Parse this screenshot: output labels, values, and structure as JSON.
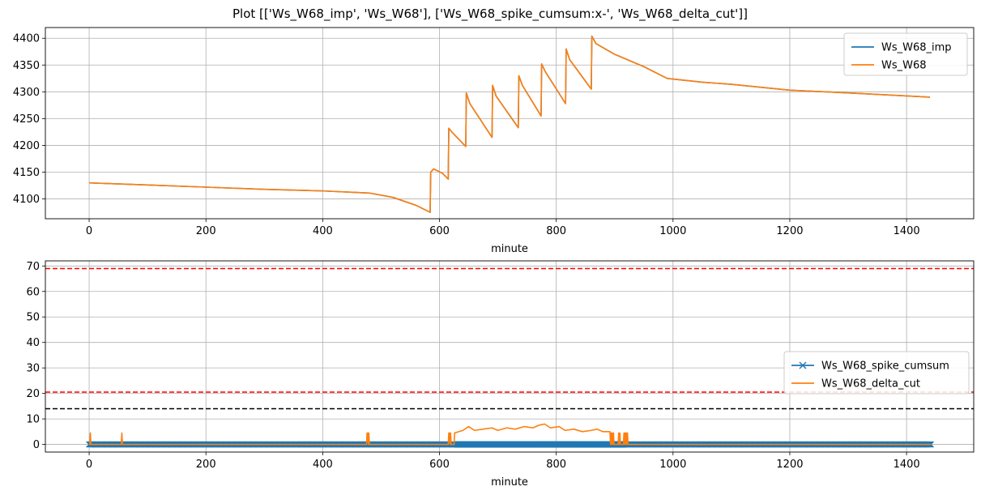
{
  "figure": {
    "title": "Plot [['Ws_W68_imp', 'Ws_W68'], ['Ws_W68_spike_cumsum:x-', 'Ws_W68_delta_cut']]"
  },
  "colors": {
    "blue": "#1f77b4",
    "orange": "#ff7f0e",
    "red_dashed": "#ff0000",
    "black_dashed": "#000000",
    "grid": "#b0b0b0"
  },
  "chart_data": [
    {
      "type": "line",
      "title": "",
      "xlabel": "minute",
      "ylabel": "",
      "xlim": [
        -75,
        1515
      ],
      "ylim": [
        4063,
        4420
      ],
      "xticks": [
        0,
        200,
        400,
        600,
        800,
        1000,
        1200,
        1400
      ],
      "yticks": [
        4100,
        4150,
        4200,
        4250,
        4300,
        4350,
        4400
      ],
      "grid": true,
      "legend": "top-right",
      "series": [
        {
          "name": "Ws_W68_imp",
          "color": "#1f77b4",
          "points": [
            [
              0,
              4130
            ],
            [
              100,
              4126
            ],
            [
              200,
              4122
            ],
            [
              300,
              4118
            ],
            [
              400,
              4115
            ],
            [
              480,
              4111
            ],
            [
              520,
              4103
            ],
            [
              560,
              4088
            ],
            [
              584,
              4075
            ],
            [
              585,
              4150
            ],
            [
              590,
              4156
            ],
            [
              605,
              4148
            ],
            [
              615,
              4137
            ],
            [
              616,
              4232
            ],
            [
              622,
              4224
            ],
            [
              645,
              4198
            ],
            [
              646,
              4298
            ],
            [
              652,
              4278
            ],
            [
              690,
              4215
            ],
            [
              691,
              4312
            ],
            [
              697,
              4292
            ],
            [
              735,
              4233
            ],
            [
              736,
              4330
            ],
            [
              742,
              4312
            ],
            [
              774,
              4255
            ],
            [
              775,
              4352
            ],
            [
              781,
              4338
            ],
            [
              816,
              4278
            ],
            [
              817,
              4380
            ],
            [
              823,
              4360
            ],
            [
              860,
              4305
            ],
            [
              861,
              4404
            ],
            [
              868,
              4390
            ],
            [
              900,
              4370
            ],
            [
              950,
              4347
            ],
            [
              990,
              4325
            ],
            [
              1050,
              4318
            ],
            [
              1100,
              4314
            ],
            [
              1200,
              4303
            ],
            [
              1300,
              4298
            ],
            [
              1440,
              4290
            ]
          ]
        },
        {
          "name": "Ws_W68",
          "color": "#ff7f0e",
          "points": [
            [
              0,
              4130
            ],
            [
              100,
              4126
            ],
            [
              200,
              4122
            ],
            [
              300,
              4118
            ],
            [
              400,
              4115
            ],
            [
              480,
              4111
            ],
            [
              520,
              4103
            ],
            [
              560,
              4088
            ],
            [
              584,
              4075
            ],
            [
              585,
              4150
            ],
            [
              590,
              4156
            ],
            [
              605,
              4148
            ],
            [
              615,
              4137
            ],
            [
              616,
              4232
            ],
            [
              622,
              4224
            ],
            [
              645,
              4198
            ],
            [
              646,
              4298
            ],
            [
              652,
              4278
            ],
            [
              690,
              4215
            ],
            [
              691,
              4312
            ],
            [
              697,
              4292
            ],
            [
              735,
              4233
            ],
            [
              736,
              4330
            ],
            [
              742,
              4312
            ],
            [
              774,
              4255
            ],
            [
              775,
              4352
            ],
            [
              781,
              4338
            ],
            [
              816,
              4278
            ],
            [
              817,
              4380
            ],
            [
              823,
              4360
            ],
            [
              860,
              4305
            ],
            [
              861,
              4404
            ],
            [
              868,
              4390
            ],
            [
              900,
              4370
            ],
            [
              950,
              4347
            ],
            [
              990,
              4325
            ],
            [
              1050,
              4318
            ],
            [
              1100,
              4314
            ],
            [
              1200,
              4303
            ],
            [
              1300,
              4298
            ],
            [
              1440,
              4290
            ]
          ]
        }
      ]
    },
    {
      "type": "line",
      "title": "",
      "xlabel": "minute",
      "ylabel": "",
      "xlim": [
        -75,
        1515
      ],
      "ylim": [
        -3,
        72
      ],
      "xticks": [
        0,
        200,
        400,
        600,
        800,
        1000,
        1200,
        1400
      ],
      "yticks": [
        0,
        10,
        20,
        30,
        40,
        50,
        60,
        70
      ],
      "grid": true,
      "legend": "center-right",
      "hlines": [
        {
          "y": 69,
          "color": "#ff0000",
          "style": "dashed"
        },
        {
          "y": 20.5,
          "color": "#ff0000",
          "style": "dashed"
        },
        {
          "y": 14,
          "color": "#000000",
          "style": "dashed"
        }
      ],
      "series": [
        {
          "name": "Ws_W68_spike_cumsum",
          "color": "#1f77b4",
          "marker": "x",
          "dense_marker_range": [
            625,
            920
          ],
          "points": [
            [
              0,
              0
            ],
            [
              1442,
              0
            ]
          ]
        },
        {
          "name": "Ws_W68_delta_cut",
          "color": "#ff7f0e",
          "points": [
            [
              0,
              0
            ],
            [
              1,
              0
            ],
            [
              2,
              4.5
            ],
            [
              3,
              0
            ],
            [
              55,
              0
            ],
            [
              56,
              4.5
            ],
            [
              57,
              0
            ],
            [
              475,
              0
            ],
            [
              476,
              4.5
            ],
            [
              477,
              4.5
            ],
            [
              478,
              0
            ],
            [
              479,
              4.5
            ],
            [
              480,
              0
            ],
            [
              615,
              0
            ],
            [
              616,
              4.5
            ],
            [
              617,
              4.5
            ],
            [
              618,
              0
            ],
            [
              619,
              4.5
            ],
            [
              620,
              0
            ],
            [
              625,
              0
            ],
            [
              626,
              4.5
            ],
            [
              640,
              5.5
            ],
            [
              650,
              7
            ],
            [
              660,
              5.5
            ],
            [
              675,
              6
            ],
            [
              690,
              6.5
            ],
            [
              700,
              5.5
            ],
            [
              715,
              6.5
            ],
            [
              730,
              6
            ],
            [
              745,
              7
            ],
            [
              760,
              6.5
            ],
            [
              770,
              7.5
            ],
            [
              780,
              8
            ],
            [
              790,
              6.5
            ],
            [
              805,
              7
            ],
            [
              815,
              5.5
            ],
            [
              830,
              6
            ],
            [
              845,
              5
            ],
            [
              860,
              5.5
            ],
            [
              870,
              6
            ],
            [
              880,
              5
            ],
            [
              892,
              5
            ],
            [
              893,
              0
            ],
            [
              894,
              4.5
            ],
            [
              895,
              0
            ],
            [
              896,
              4.5
            ],
            [
              897,
              0
            ],
            [
              898,
              4.5
            ],
            [
              899,
              0
            ],
            [
              906,
              0
            ],
            [
              907,
              4.5
            ],
            [
              908,
              0
            ],
            [
              909,
              4.5
            ],
            [
              910,
              0
            ],
            [
              915,
              0
            ],
            [
              916,
              4.5
            ],
            [
              917,
              0
            ],
            [
              918,
              4.5
            ],
            [
              919,
              0
            ],
            [
              920,
              4.5
            ],
            [
              921,
              0
            ],
            [
              922,
              4.5
            ],
            [
              923,
              0
            ],
            [
              1442,
              0
            ]
          ]
        }
      ]
    }
  ]
}
